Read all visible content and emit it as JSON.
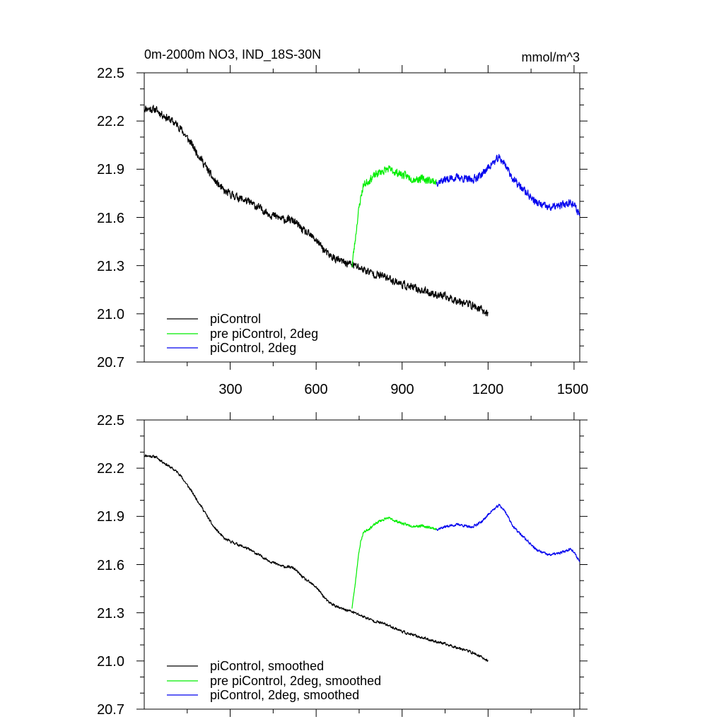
{
  "chart_data": [
    {
      "type": "line",
      "title": "0m-2000m NO3, IND_18S-30N",
      "units": "mmol/m^3",
      "xlim": [
        0,
        1520
      ],
      "ylim": [
        20.7,
        22.5
      ],
      "xticks": [
        300,
        600,
        900,
        1200,
        1500
      ],
      "xtick_labels": [
        "300",
        "600",
        "900",
        "1200",
        "1500"
      ],
      "yticks": [
        20.7,
        21.0,
        21.3,
        21.6,
        21.9,
        22.2,
        22.5
      ],
      "ytick_labels": [
        "20.7",
        "21.0",
        "21.3",
        "21.6",
        "21.9",
        "22.2",
        "22.5"
      ],
      "legend": "bottom-left",
      "series": [
        {
          "name": "piControl",
          "color": "#000000",
          "noise": 0.035,
          "seed": 11,
          "x": [
            0,
            40,
            80,
            120,
            160,
            200,
            240,
            280,
            320,
            360,
            400,
            440,
            480,
            520,
            560,
            600,
            640,
            680,
            720,
            760,
            800,
            840,
            880,
            920,
            960,
            1000,
            1040,
            1080,
            1120,
            1160,
            1200
          ],
          "y": [
            22.28,
            22.27,
            22.22,
            22.17,
            22.07,
            21.96,
            21.84,
            21.76,
            21.73,
            21.7,
            21.66,
            21.62,
            21.59,
            21.58,
            21.51,
            21.46,
            21.37,
            21.33,
            21.31,
            21.28,
            21.25,
            21.23,
            21.2,
            21.17,
            21.15,
            21.13,
            21.11,
            21.09,
            21.07,
            21.04,
            21.0
          ]
        },
        {
          "name": "pre piControl, 2deg",
          "color": "#00ee00",
          "noise": 0.035,
          "seed": 23,
          "x": [
            725,
            735,
            745,
            755,
            765,
            790,
            820,
            850,
            880,
            910,
            940,
            970,
            1000,
            1020
          ],
          "y": [
            21.3,
            21.44,
            21.6,
            21.72,
            21.8,
            21.84,
            21.88,
            21.9,
            21.88,
            21.86,
            21.84,
            21.84,
            21.83,
            21.82
          ]
        },
        {
          "name": "piControl, 2deg",
          "color": "#0000ee",
          "noise": 0.035,
          "seed": 37,
          "x": [
            1020,
            1060,
            1100,
            1140,
            1180,
            1210,
            1240,
            1260,
            1290,
            1330,
            1370,
            1410,
            1450,
            1490,
            1520
          ],
          "y": [
            21.82,
            21.84,
            21.85,
            21.83,
            21.87,
            21.93,
            21.97,
            21.93,
            21.83,
            21.76,
            21.69,
            21.66,
            21.67,
            21.7,
            21.62
          ]
        }
      ]
    },
    {
      "type": "line",
      "title": "",
      "units": "",
      "xlim": [
        0,
        1520
      ],
      "ylim": [
        20.7,
        22.5
      ],
      "xticks": [
        300,
        600,
        900,
        1200,
        1500
      ],
      "xtick_labels": [],
      "yticks": [
        20.7,
        21.0,
        21.3,
        21.6,
        21.9,
        22.2,
        22.5
      ],
      "ytick_labels": [
        "20.7",
        "21.0",
        "21.3",
        "21.6",
        "21.9",
        "22.2",
        "22.5"
      ],
      "legend": "bottom-left",
      "series": [
        {
          "name": "piControl, smoothed",
          "color": "#000000",
          "noise": 0.012,
          "seed": 11,
          "x": [
            0,
            40,
            80,
            120,
            160,
            200,
            240,
            280,
            320,
            360,
            400,
            440,
            480,
            520,
            560,
            600,
            640,
            680,
            720,
            760,
            800,
            840,
            880,
            920,
            960,
            1000,
            1040,
            1080,
            1120,
            1160,
            1200
          ],
          "y": [
            22.28,
            22.27,
            22.22,
            22.17,
            22.07,
            21.96,
            21.84,
            21.76,
            21.73,
            21.7,
            21.66,
            21.62,
            21.59,
            21.58,
            21.51,
            21.46,
            21.37,
            21.33,
            21.31,
            21.28,
            21.25,
            21.23,
            21.2,
            21.17,
            21.15,
            21.13,
            21.11,
            21.09,
            21.07,
            21.04,
            21.0
          ]
        },
        {
          "name": "pre piControl, 2deg, smoothed",
          "color": "#00ee00",
          "noise": 0.012,
          "seed": 23,
          "x": [
            725,
            735,
            745,
            755,
            765,
            790,
            820,
            850,
            880,
            910,
            940,
            970,
            1000,
            1020
          ],
          "y": [
            21.33,
            21.46,
            21.62,
            21.74,
            21.8,
            21.83,
            21.87,
            21.89,
            21.87,
            21.85,
            21.84,
            21.84,
            21.83,
            21.82
          ]
        },
        {
          "name": "piControl, 2deg, smoothed",
          "color": "#0000ee",
          "noise": 0.012,
          "seed": 37,
          "x": [
            1020,
            1060,
            1100,
            1140,
            1180,
            1210,
            1240,
            1260,
            1290,
            1330,
            1370,
            1410,
            1450,
            1490,
            1520
          ],
          "y": [
            21.82,
            21.84,
            21.85,
            21.83,
            21.87,
            21.93,
            21.97,
            21.93,
            21.83,
            21.76,
            21.69,
            21.66,
            21.67,
            21.7,
            21.62
          ]
        }
      ]
    }
  ]
}
